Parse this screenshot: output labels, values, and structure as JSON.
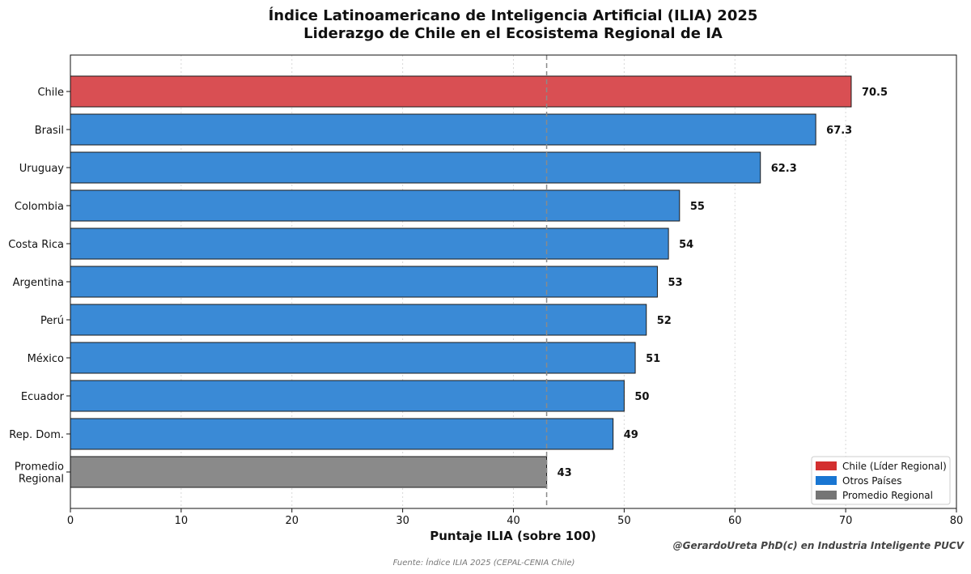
{
  "chart_data": {
    "type": "bar",
    "orientation": "horizontal",
    "title": "Índice Latinoamericano de Inteligencia Artificial (ILIA) 2025",
    "subtitle": "Liderazgo de Chile en el Ecosistema Regional de IA",
    "xlabel": "Puntaje ILIA (sobre 100)",
    "ylabel": "",
    "xlim": [
      0,
      80
    ],
    "xticks": [
      0,
      10,
      20,
      30,
      40,
      50,
      60,
      70,
      80
    ],
    "grid": "vertical dotted",
    "categories": [
      "Chile",
      "Brasil",
      "Uruguay",
      "Colombia",
      "Costa Rica",
      "Argentina",
      "Perú",
      "México",
      "Ecuador",
      "Rep. Dom.",
      "Promedio Regional"
    ],
    "category_label_lines": [
      [
        "Chile"
      ],
      [
        "Brasil"
      ],
      [
        "Uruguay"
      ],
      [
        "Colombia"
      ],
      [
        "Costa Rica"
      ],
      [
        "Argentina"
      ],
      [
        "Perú"
      ],
      [
        "México"
      ],
      [
        "Ecuador"
      ],
      [
        "Rep. Dom."
      ],
      [
        "Promedio",
        "Regional"
      ]
    ],
    "values": [
      70.5,
      67.3,
      62.3,
      55,
      54,
      53,
      52,
      51,
      50,
      49,
      43
    ],
    "value_labels": [
      "70.5",
      "67.3",
      "62.3",
      "55",
      "54",
      "53",
      "52",
      "51",
      "50",
      "49",
      "43"
    ],
    "bar_groups": [
      "chile",
      "otros",
      "otros",
      "otros",
      "otros",
      "otros",
      "otros",
      "otros",
      "otros",
      "otros",
      "promedio"
    ],
    "reference_line": {
      "value": 43,
      "style": "dashed"
    },
    "legend": {
      "placement": "bottom-right",
      "entries": [
        {
          "group": "chile",
          "label": "Chile (Líder Regional)",
          "color": "#d32f2f"
        },
        {
          "group": "otros",
          "label": "Otros Países",
          "color": "#1976d2"
        },
        {
          "group": "promedio",
          "label": "Promedio Regional",
          "color": "#757575"
        }
      ]
    },
    "bar_colors": {
      "chile": "#d94f53",
      "otros": "#3a8ad6",
      "promedio": "#8a8a8a"
    }
  },
  "credit": "@GerardoUreta PhD(c) en Industria Inteligente PUCV",
  "source": "Fuente: Índice ILIA 2025 (CEPAL-CENIA Chile)"
}
